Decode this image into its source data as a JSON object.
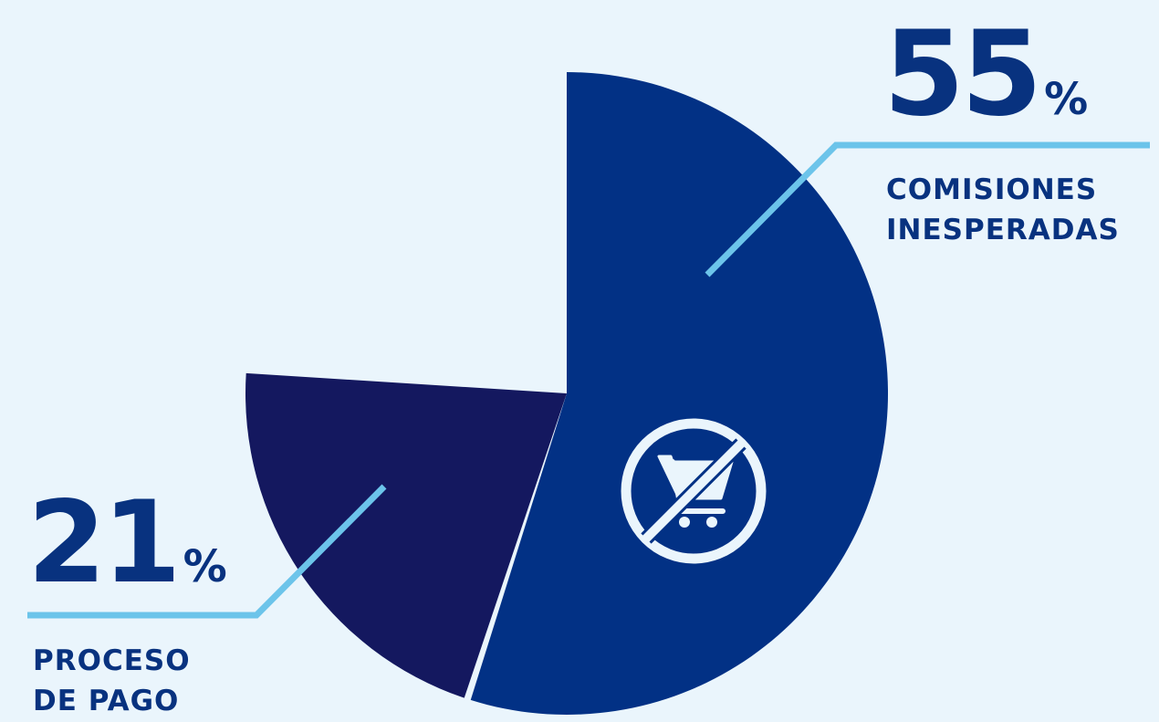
{
  "colors": {
    "background": "#EAF5FC",
    "slice_comisiones": "#023185",
    "slice_proceso": "#14185F",
    "leader_line": "#6CC4EA",
    "text": "#08327F",
    "icon": "#EAF5FC"
  },
  "chart_data": {
    "type": "pie",
    "start_angle_deg": 0,
    "direction": "clockwise",
    "slices": [
      {
        "label_lines": [
          "COMISIONES",
          "INESPERADAS"
        ],
        "value": 55,
        "value_display": "55",
        "unit": "%",
        "color": "#023185",
        "icon": "no-shopping-cart-icon",
        "callout_side": "top-right"
      },
      {
        "label_lines": [
          "PROCESO",
          "DE PAGO"
        ],
        "value": 21,
        "value_display": "21",
        "unit": "%",
        "color": "#14185F",
        "callout_side": "bottom-left"
      }
    ]
  }
}
